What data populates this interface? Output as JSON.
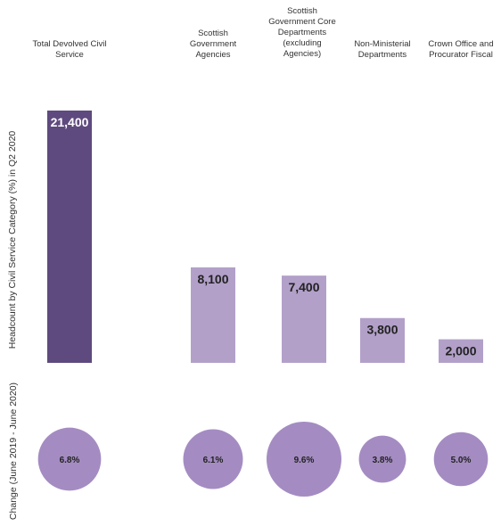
{
  "chart_data": {
    "type": "bar",
    "categories": [
      "Total Devolved Civil\nService",
      "Scottish\nGovernment\nAgencies",
      "Scottish\nGovernment Core\nDepartments\n(excluding\nAgencies)",
      "Non-Ministerial\nDepartments",
      "Crown Office and\nProcurator Fiscal"
    ],
    "values": [
      21400,
      8100,
      7400,
      3800,
      2000
    ],
    "value_labels": [
      "21,400",
      "8,100",
      "7,400",
      "3,800",
      "2,000"
    ],
    "change_values": [
      6.8,
      6.1,
      9.6,
      3.8,
      5.0
    ],
    "change_labels": [
      "6.8%",
      "6.1%",
      "9.6%",
      "3.8%",
      "5.0%"
    ],
    "ylabel": "Headcount by Civil Service Category (%) in Q2 2020",
    "ylabel2": "Change (June 2019 - June 2020)",
    "ylim": [
      0,
      21400
    ],
    "grid": false,
    "colors": {
      "total_bar": "#5e4a7e",
      "category_bar": "#b2a0c9",
      "bubble": "#a48cc2",
      "total_value_text": "#ffffff",
      "category_value_text": "#222222",
      "bubble_text": "#222222"
    }
  }
}
